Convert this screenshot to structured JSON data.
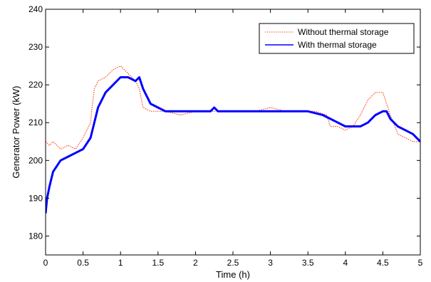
{
  "chart_data": {
    "type": "line",
    "title": "",
    "xlabel": "Time (h)",
    "ylabel": "Generator Power (kW)",
    "xlim": [
      0,
      5
    ],
    "ylim": [
      175,
      240
    ],
    "xticks": [
      0,
      0.5,
      1,
      1.5,
      2,
      2.5,
      3,
      3.5,
      4,
      4.5,
      5
    ],
    "xtick_labels": [
      "0",
      "0.5",
      "1",
      "1.5",
      "2",
      "2.5",
      "3",
      "3.5",
      "4",
      "4.5",
      "5"
    ],
    "yticks": [
      180,
      190,
      200,
      210,
      220,
      230,
      240
    ],
    "ytick_labels": [
      "180",
      "190",
      "200",
      "210",
      "220",
      "230",
      "240"
    ],
    "grid": false,
    "legend_position": "top-right",
    "series": [
      {
        "name": "Without thermal storage",
        "color": "#ff4a1a",
        "style": "dotted",
        "x": [
          0,
          0.05,
          0.1,
          0.2,
          0.3,
          0.4,
          0.5,
          0.55,
          0.6,
          0.62,
          0.65,
          0.7,
          0.8,
          0.9,
          1.0,
          1.1,
          1.2,
          1.25,
          1.3,
          1.4,
          1.5,
          1.6,
          1.8,
          2.0,
          2.2,
          2.4,
          2.6,
          2.8,
          3.0,
          3.2,
          3.4,
          3.6,
          3.75,
          3.8,
          3.9,
          4.0,
          4.1,
          4.2,
          4.3,
          4.4,
          4.5,
          4.6,
          4.7,
          4.8,
          4.9,
          5.0
        ],
        "y": [
          205,
          204,
          205,
          203,
          204,
          203,
          206,
          208,
          210,
          214,
          219,
          221,
          222,
          224,
          225,
          223,
          221,
          219,
          214,
          213,
          213,
          213,
          212,
          213,
          213,
          213,
          213,
          213,
          214,
          213,
          213,
          213,
          212,
          209,
          209,
          208,
          209,
          212,
          216,
          218,
          218,
          212,
          207,
          206,
          205,
          205
        ]
      },
      {
        "name": "With thermal storage",
        "color": "#0000ff",
        "style": "solid",
        "x": [
          0,
          0.02,
          0.05,
          0.1,
          0.2,
          0.3,
          0.4,
          0.5,
          0.6,
          0.65,
          0.7,
          0.8,
          0.9,
          1.0,
          1.1,
          1.2,
          1.25,
          1.3,
          1.4,
          1.5,
          1.6,
          1.8,
          2.0,
          2.2,
          2.25,
          2.3,
          2.5,
          2.7,
          3.0,
          3.2,
          3.5,
          3.7,
          3.8,
          3.9,
          4.0,
          4.1,
          4.2,
          4.3,
          4.4,
          4.5,
          4.55,
          4.6,
          4.7,
          4.8,
          4.9,
          5.0
        ],
        "y": [
          186,
          190,
          193,
          197,
          200,
          201,
          202,
          203,
          206,
          210,
          214,
          218,
          220,
          222,
          222,
          221,
          222,
          219,
          215,
          214,
          213,
          213,
          213,
          213,
          214,
          213,
          213,
          213,
          213,
          213,
          213,
          212,
          211,
          210,
          209,
          209,
          209,
          210,
          212,
          213,
          213,
          211,
          209,
          208,
          207,
          205
        ]
      }
    ]
  }
}
